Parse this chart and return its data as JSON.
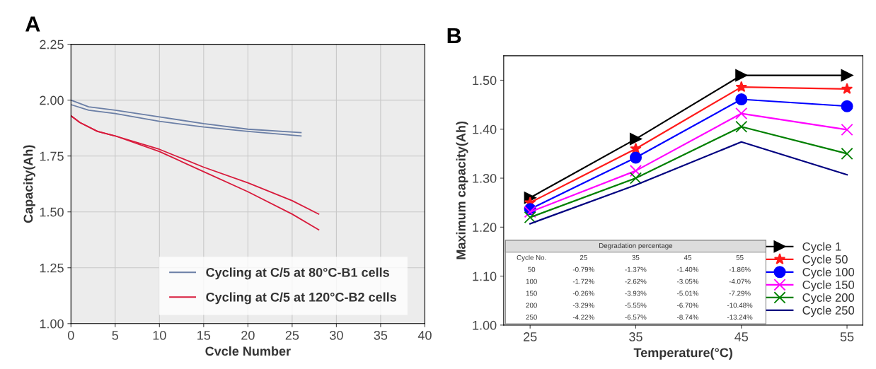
{
  "chart_data": [
    {
      "type": "line",
      "title": "A",
      "xlabel": "Cvcle Number",
      "ylabel": "Capacity(Ah)",
      "xlim": [
        0,
        40
      ],
      "xticks": [
        0,
        5,
        10,
        15,
        20,
        25,
        30,
        35,
        40
      ],
      "ylim": [
        1.0,
        2.25
      ],
      "yticks": [
        {
          "value": 1.0,
          "label": "1.00"
        },
        {
          "value": 1.25,
          "label": "1.25"
        },
        {
          "value": 1.5,
          "label": "1.50"
        },
        {
          "value": 1.75,
          "label": "1.75"
        },
        {
          "value": 2.0,
          "label": "2.00"
        },
        {
          "value": 2.25,
          "label": "2.25"
        }
      ],
      "grid": true,
      "legend": "bottom",
      "marker": "none",
      "line_style": "solid",
      "series": [
        {
          "name": "Cycling at C/5 at 80°C-B1 cells",
          "color": "#6b7fa6",
          "x": [
            0,
            2,
            5,
            10,
            15,
            20,
            26
          ],
          "values": [
            2.0,
            1.97,
            1.955,
            1.925,
            1.895,
            1.87,
            1.855
          ]
        },
        {
          "color": "#6b7fa6",
          "x": [
            0,
            2,
            5,
            10,
            15,
            20,
            26
          ],
          "values": [
            1.98,
            1.955,
            1.94,
            1.905,
            1.88,
            1.86,
            1.84
          ]
        },
        {
          "name": "Cycling at C/5 at 120°C-B2 cells",
          "color": "#d81b3c",
          "x": [
            0,
            1,
            3,
            5,
            10,
            15,
            20,
            25,
            28
          ],
          "values": [
            1.93,
            1.9,
            1.86,
            1.84,
            1.78,
            1.7,
            1.63,
            1.55,
            1.49
          ]
        },
        {
          "color": "#d81b3c",
          "x": [
            0,
            1,
            3,
            5,
            10,
            15,
            20,
            25,
            28
          ],
          "values": [
            1.93,
            1.9,
            1.86,
            1.84,
            1.77,
            1.68,
            1.59,
            1.49,
            1.42
          ]
        }
      ]
    },
    {
      "type": "line",
      "title": "B",
      "xlabel": "Temperature(°C)",
      "ylabel": "Maximum capacity(Ah)",
      "xlim": [
        22.5,
        56.5
      ],
      "xticks": [
        25,
        35,
        45,
        55
      ],
      "ylim": [
        1.0,
        1.55
      ],
      "yticks": [
        {
          "value": 1.0,
          "label": "1.00"
        },
        {
          "value": 1.1,
          "label": "1.10"
        },
        {
          "value": 1.2,
          "label": "1.20"
        },
        {
          "value": 1.3,
          "label": "1.30"
        },
        {
          "value": 1.4,
          "label": "1.40"
        },
        {
          "value": 1.5,
          "label": "1.50"
        }
      ],
      "grid": false,
      "legend": "bottom right",
      "line_style": "solid",
      "x": [
        25,
        35,
        45,
        55
      ],
      "series": [
        {
          "name": "Cycle 1",
          "color": "#000000",
          "marker": "triangle",
          "values": [
            1.26,
            1.38,
            1.51,
            1.51
          ]
        },
        {
          "name": "Cycle 50",
          "color": "#ff1a1a",
          "marker": "star",
          "values": [
            1.25,
            1.36,
            1.486,
            1.482
          ]
        },
        {
          "name": "Cycle 100",
          "color": "#0000ff",
          "marker": "circle",
          "values": [
            1.237,
            1.342,
            1.461,
            1.447
          ]
        },
        {
          "name": "Cycle 150",
          "color": "#ff00ff",
          "marker": "cross",
          "values": [
            1.231,
            1.315,
            1.432,
            1.399
          ]
        },
        {
          "name": "Cycle 200",
          "color": "#008000",
          "marker": "cross",
          "values": [
            1.22,
            1.3,
            1.405,
            1.35
          ]
        },
        {
          "name": "Cycle 250",
          "color": "#000080",
          "marker": "none",
          "values": [
            1.207,
            1.286,
            1.374,
            1.307
          ]
        }
      ],
      "annotations": [
        "Degradation percentage",
        "Cycle No.",
        "25",
        "35",
        "45",
        "55",
        "50",
        "-0.79%",
        "-1.37%",
        "-1.40%",
        "-1.86%",
        "100",
        "-1.72%",
        "-2.62%",
        "-3.05%",
        "-4.07%",
        "150",
        "-0.26%",
        "-3.93%",
        "-5.01%",
        "-7.29%",
        "200",
        "-3.29%",
        "-5.55%",
        "-6.70%",
        "-10.48%",
        "250",
        "-4.22%",
        "-6.57%",
        "-8.74%",
        "-13.24%"
      ]
    }
  ]
}
